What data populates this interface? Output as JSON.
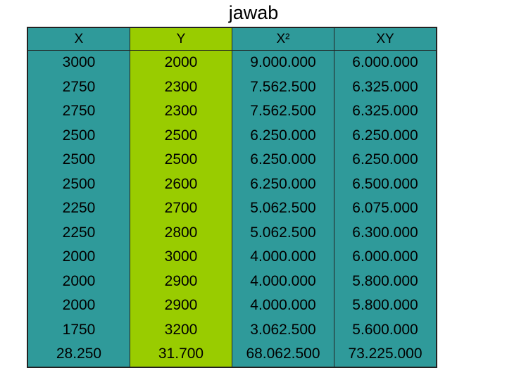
{
  "title": "jawab",
  "table": {
    "header": [
      "X",
      "Y",
      "X²",
      "XY"
    ],
    "rows": [
      [
        "3000",
        "2000",
        "9.000.000",
        "6.000.000"
      ],
      [
        "2750",
        "2300",
        "7.562.500",
        "6.325.000"
      ],
      [
        "2750",
        "2300",
        "7.562.500",
        "6.325.000"
      ],
      [
        "2500",
        "2500",
        "6.250.000",
        "6.250.000"
      ],
      [
        "2500",
        "2500",
        "6.250.000",
        "6.250.000"
      ],
      [
        "2500",
        "2600",
        "6.250.000",
        "6.500.000"
      ],
      [
        "2250",
        "2700",
        "5.062.500",
        "6.075.000"
      ],
      [
        "2250",
        "2800",
        "5.062.500",
        "6.300.000"
      ],
      [
        "2000",
        "3000",
        "4.000.000",
        "6.000.000"
      ],
      [
        "2000",
        "2900",
        "4.000.000",
        "5.800.000"
      ],
      [
        "2000",
        "2900",
        "4.000.000",
        "5.800.000"
      ],
      [
        "1750",
        "3200",
        "3.062.500",
        "5.600.000"
      ]
    ],
    "totals": [
      "28.250",
      "31.700",
      "68.062.500",
      "73.225.000"
    ]
  }
}
